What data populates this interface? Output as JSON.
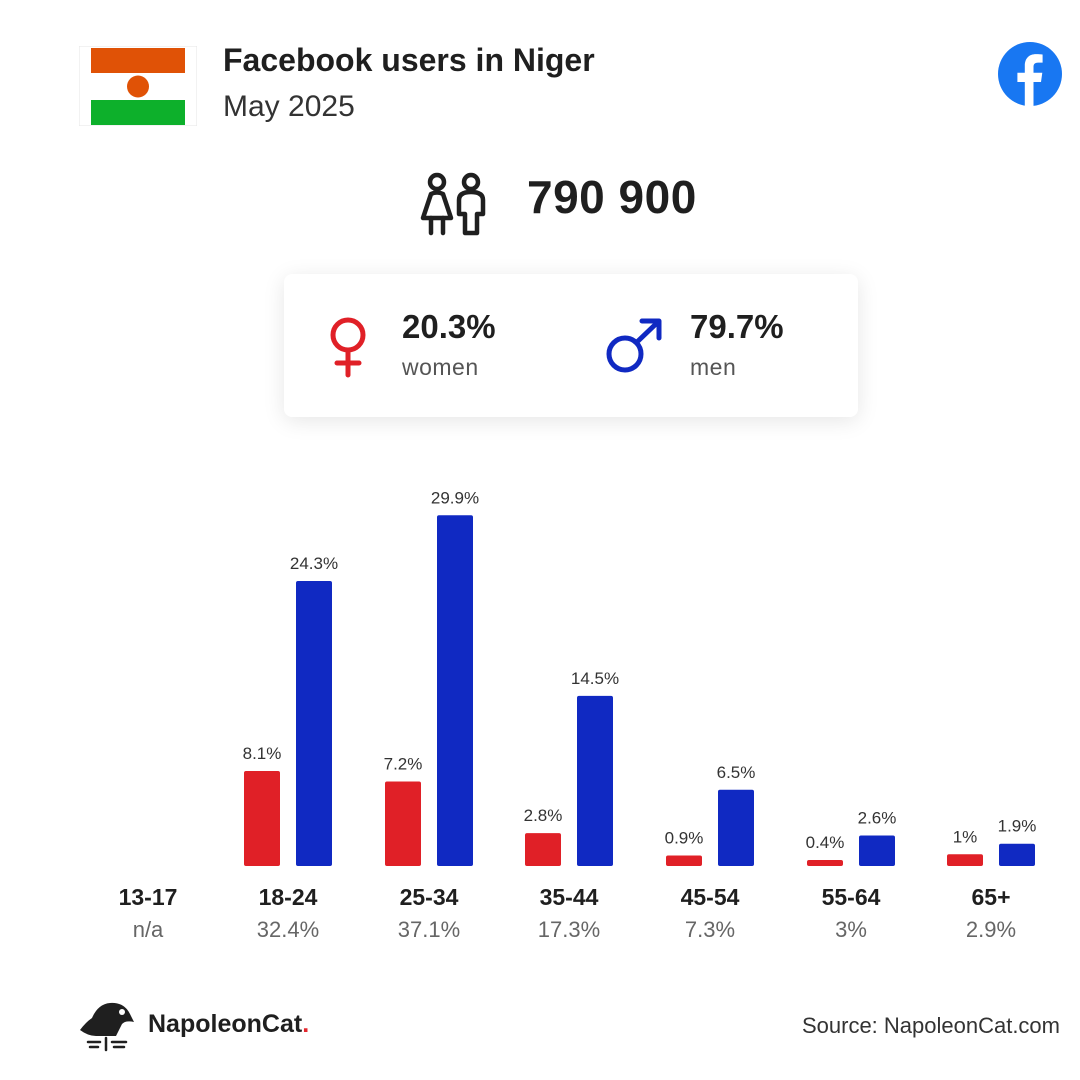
{
  "header": {
    "title": "Facebook users in Niger",
    "subtitle": "May 2025"
  },
  "icons": {
    "flag": "niger-flag-icon",
    "facebook": "facebook-logo-icon",
    "users": "users-icon",
    "female": "female-symbol-icon",
    "male": "male-symbol-icon",
    "brand": "napoleoncat-logo-icon"
  },
  "colors": {
    "women": "#e02027",
    "men": "#1029c2",
    "facebook": "#1877f2",
    "flag_orange": "#e05206",
    "flag_green": "#0db02b"
  },
  "summary": {
    "total_users": "790 900",
    "women_pct": "20.3%",
    "women_label": "women",
    "men_pct": "79.7%",
    "men_label": "men"
  },
  "chart_data": {
    "type": "bar",
    "categories": [
      "13-17",
      "18-24",
      "25-34",
      "35-44",
      "45-54",
      "55-64",
      "65+"
    ],
    "series": [
      {
        "name": "women",
        "values": [
          null,
          8.1,
          7.2,
          2.8,
          0.9,
          0.4,
          1.0
        ],
        "labels": [
          "",
          "8.1%",
          "7.2%",
          "2.8%",
          "0.9%",
          "0.4%",
          "1%"
        ]
      },
      {
        "name": "men",
        "values": [
          null,
          24.3,
          29.9,
          14.5,
          6.5,
          2.6,
          1.9
        ],
        "labels": [
          "",
          "24.3%",
          "29.9%",
          "14.5%",
          "6.5%",
          "2.6%",
          "1.9%"
        ]
      }
    ],
    "group_totals": [
      "n/a",
      "32.4%",
      "37.1%",
      "17.3%",
      "7.3%",
      "3%",
      "2.9%"
    ],
    "ylim": [
      0,
      30
    ]
  },
  "footer": {
    "brand_name": "NapoleonCat",
    "brand_dot": ".",
    "source": "Source: NapoleonCat.com"
  }
}
